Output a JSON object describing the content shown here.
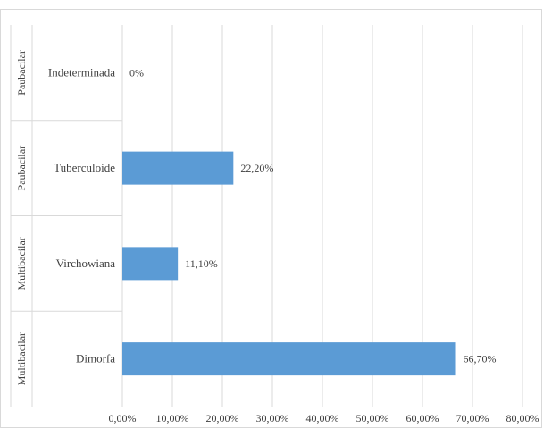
{
  "chart_data": {
    "type": "bar",
    "orientation": "horizontal",
    "categories": [
      "Indeterminada",
      "Tuberculoide",
      "Virchowiana",
      "Dimorfa"
    ],
    "groups": [
      "Paubacilar",
      "Paubacilar",
      "Multibacilar",
      "Multibacilar"
    ],
    "values": [
      0,
      22.2,
      11.1,
      66.7
    ],
    "data_labels": [
      "0%",
      "22,20%",
      "11,10%",
      "66,70%"
    ],
    "x_ticks": [
      "0,00%",
      "10,00%",
      "20,00%",
      "30,00%",
      "40,00%",
      "50,00%",
      "60,00%",
      "70,00%",
      "80,00%"
    ],
    "xlim": [
      0,
      80
    ],
    "grid": "vertical",
    "legend": "none",
    "bar_color": "#5b9bd5",
    "title": "",
    "xlabel": "",
    "ylabel": ""
  }
}
